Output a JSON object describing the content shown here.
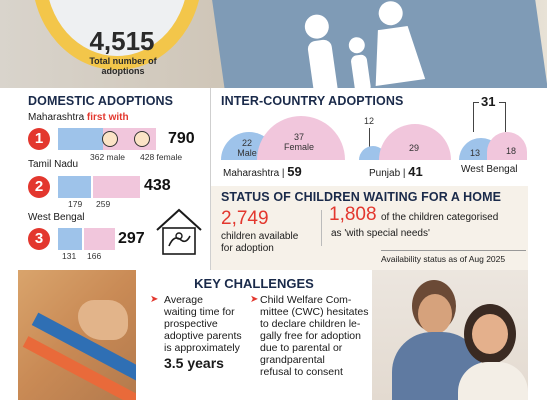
{
  "total": {
    "value": "4,515",
    "label_line1": "Total number of",
    "label_line2": "adoptions"
  },
  "domestic": {
    "title": "DOMESTIC ADOPTIONS",
    "states": [
      {
        "name": "Maharashtra",
        "highlight": "first with",
        "rank": "1",
        "total": "790",
        "male": "362 male",
        "female": "428 female",
        "male_n": 362,
        "female_n": 428
      },
      {
        "name": "Tamil Nadu",
        "highlight": "",
        "rank": "2",
        "total": "438",
        "male": "179",
        "female": "259",
        "male_n": 179,
        "female_n": 259
      },
      {
        "name": "West Bengal",
        "highlight": "",
        "rank": "3",
        "total": "297",
        "male": "131",
        "female": "166",
        "male_n": 131,
        "female_n": 166
      }
    ]
  },
  "inter": {
    "title": "INTER-COUNTRY ADOPTIONS",
    "states": [
      {
        "name": "Maharashtra",
        "total": "59",
        "male": "22",
        "female": "37",
        "male_label": "Male",
        "female_label": "Female"
      },
      {
        "name": "Punjab",
        "total": "41",
        "male": "12",
        "female": "29"
      },
      {
        "name": "West Bengal",
        "total": "31",
        "male": "13",
        "female": "18"
      }
    ]
  },
  "status": {
    "title": "STATUS OF CHILDREN WAITING FOR A HOME",
    "available_num": "2,749",
    "available_line1": "children available",
    "available_line2": "for adoption",
    "special_num": "1,808",
    "special_line1": "of the children categorised",
    "special_line2": "as 'with special needs'",
    "note": "Availability status as of Aug 2025"
  },
  "challenges": {
    "title": "KEY CHALLENGES",
    "left_lines": [
      "Average",
      "waiting time for",
      "prospective",
      "adoptive parents",
      "is approximately"
    ],
    "left_value": "3.5 years",
    "right_lines": [
      "Child Welfare Com-",
      "mittee (CWC) hesitates",
      "to declare children le-",
      "gally free for adoption",
      "due to parental or",
      "grandparental",
      "refusal to consent"
    ]
  },
  "colors": {
    "male": "#9ec3ea",
    "female": "#f1c6dc",
    "accent": "#e3372e",
    "title": "#1a2a4a"
  }
}
